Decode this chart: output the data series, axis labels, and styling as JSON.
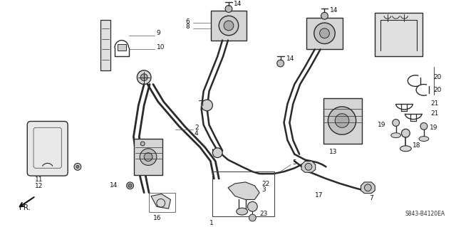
{
  "background_color": "#ffffff",
  "diagram_code": "S843-B4120EA",
  "fr_label": "FR.",
  "line_color": "#2a2a2a",
  "figsize": [
    6.4,
    3.19
  ],
  "dpi": 100
}
